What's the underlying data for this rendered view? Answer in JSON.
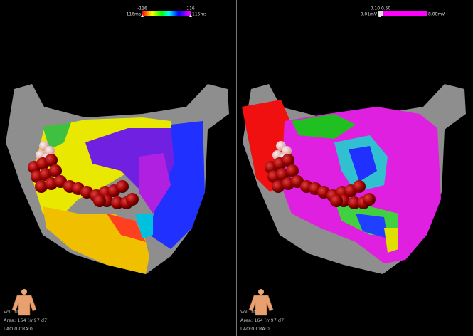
{
  "panels": [
    {
      "colorbar": {
        "top_left": "-116",
        "left": "-116ms",
        "top_right": "116",
        "right": "115ms"
      },
      "info": [
        "Vol: 10",
        "Area: 164 (m97 d7)",
        "LAO:0 CRA:0"
      ]
    },
    {
      "colorbar": {
        "top_left": "0.10 0.50",
        "left": "0.01mV",
        "right": "8.00mV"
      },
      "info": [
        "Vol: 10",
        "Area: 164 (m97 d7)",
        "LAO:0 CRA:0"
      ]
    }
  ]
}
